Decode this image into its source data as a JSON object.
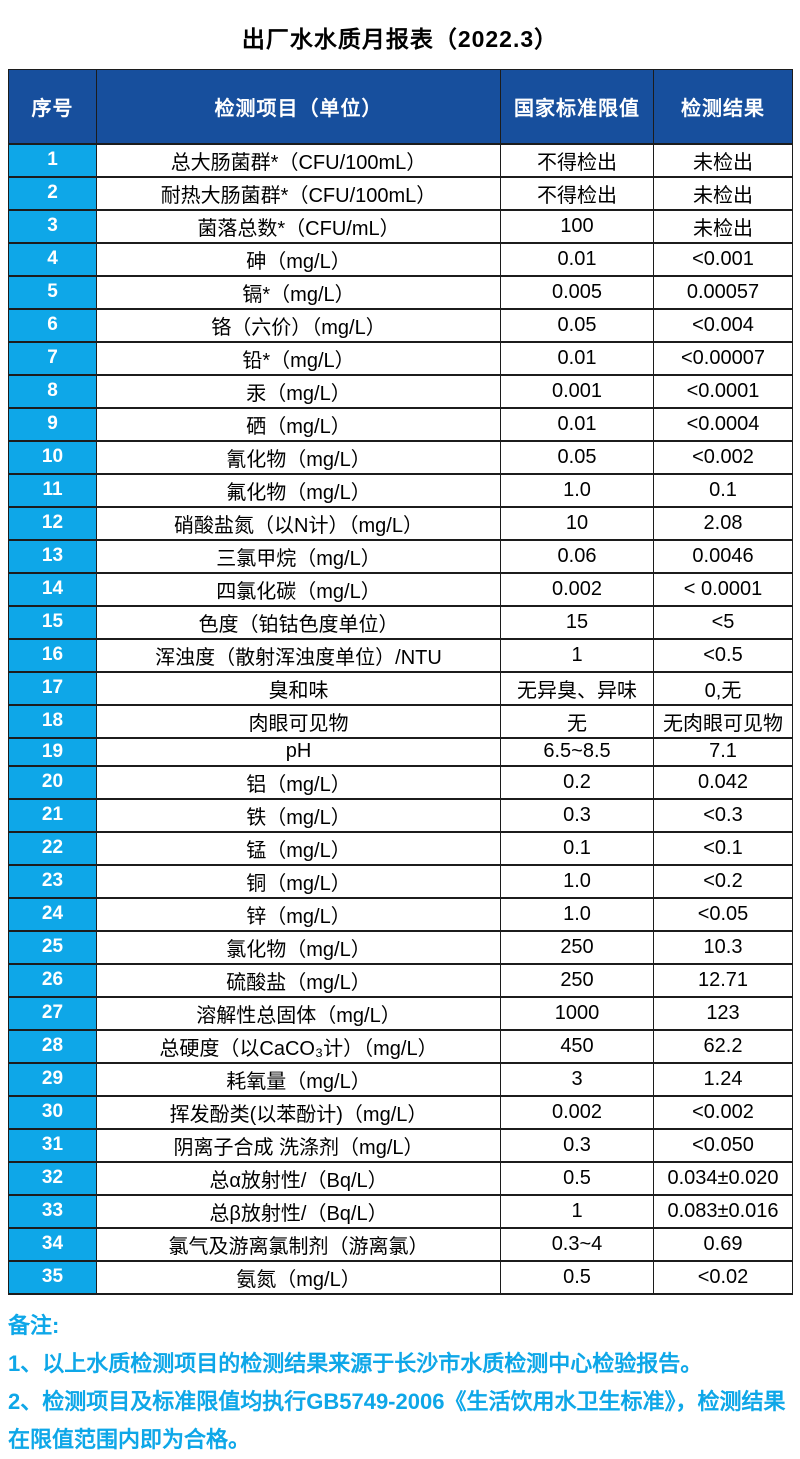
{
  "page": {
    "title": "出厂水水质月报表（2022.3）"
  },
  "table": {
    "headers": [
      "序号",
      "检测项目（单位）",
      "国家标准限值",
      "检测结果"
    ],
    "rows": [
      {
        "no": "1",
        "item": "总大肠菌群*（CFU/100mL）",
        "limit": "不得检出",
        "result": "未检出"
      },
      {
        "no": "2",
        "item": "耐热大肠菌群*（CFU/100mL）",
        "limit": "不得检出",
        "result": "未检出"
      },
      {
        "no": "3",
        "item": "菌落总数*（CFU/mL）",
        "limit": "100",
        "result": "未检出"
      },
      {
        "no": "4",
        "item": "砷（mg/L）",
        "limit": "0.01",
        "result": "<0.001"
      },
      {
        "no": "5",
        "item": "镉*（mg/L）",
        "limit": "0.005",
        "result": "0.00057"
      },
      {
        "no": "6",
        "item": "铬（六价）（mg/L）",
        "limit": "0.05",
        "result": "<0.004"
      },
      {
        "no": "7",
        "item": "铅*（mg/L）",
        "limit": "0.01",
        "result": "<0.00007"
      },
      {
        "no": "8",
        "item": "汞（mg/L）",
        "limit": "0.001",
        "result": "<0.0001"
      },
      {
        "no": "9",
        "item": "硒（mg/L）",
        "limit": "0.01",
        "result": "<0.0004"
      },
      {
        "no": "10",
        "item": "氰化物（mg/L）",
        "limit": "0.05",
        "result": "<0.002"
      },
      {
        "no": "11",
        "item": "氟化物（mg/L）",
        "limit": "1.0",
        "result": "0.1"
      },
      {
        "no": "12",
        "item": "硝酸盐氮（以N计）（mg/L）",
        "limit": "10",
        "result": "2.08"
      },
      {
        "no": "13",
        "item": "三氯甲烷（mg/L）",
        "limit": "0.06",
        "result": "0.0046"
      },
      {
        "no": "14",
        "item": "四氯化碳（mg/L）",
        "limit": "0.002",
        "result": "< 0.0001"
      },
      {
        "no": "15",
        "item": "色度（铂钴色度单位）",
        "limit": "15",
        "result": "<5"
      },
      {
        "no": "16",
        "item": "浑浊度（散射浑浊度单位）/NTU",
        "limit": "1",
        "result": "<0.5"
      },
      {
        "no": "17",
        "item": "臭和味",
        "limit": "无异臭、异味",
        "result": "0,无"
      },
      {
        "no": "18",
        "item": "肉眼可见物",
        "limit": "无",
        "result": "无肉眼可见物"
      },
      {
        "no": "19",
        "item": "pH",
        "limit": "6.5~8.5",
        "result": "7.1"
      },
      {
        "no": "20",
        "item": "铝（mg/L）",
        "limit": "0.2",
        "result": "0.042"
      },
      {
        "no": "21",
        "item": "铁（mg/L）",
        "limit": "0.3",
        "result": "<0.3"
      },
      {
        "no": "22",
        "item": "锰（mg/L）",
        "limit": "0.1",
        "result": "<0.1"
      },
      {
        "no": "23",
        "item": "铜（mg/L）",
        "limit": "1.0",
        "result": "<0.2"
      },
      {
        "no": "24",
        "item": "锌（mg/L）",
        "limit": "1.0",
        "result": "<0.05"
      },
      {
        "no": "25",
        "item": "氯化物（mg/L）",
        "limit": "250",
        "result": "10.3"
      },
      {
        "no": "26",
        "item": "硫酸盐（mg/L）",
        "limit": "250",
        "result": "12.71"
      },
      {
        "no": "27",
        "item": "溶解性总固体（mg/L）",
        "limit": "1000",
        "result": "123"
      },
      {
        "no": "28",
        "item": "总硬度（以CaCO₃计）（mg/L）",
        "limit": "450",
        "result": "62.2"
      },
      {
        "no": "29",
        "item": "耗氧量（mg/L）",
        "limit": "3",
        "result": "1.24"
      },
      {
        "no": "30",
        "item": "挥发酚类(以苯酚计)（mg/L）",
        "limit": "0.002",
        "result": "<0.002"
      },
      {
        "no": "31",
        "item": "阴离子合成 洗涤剂（mg/L）",
        "limit": "0.3",
        "result": "<0.050"
      },
      {
        "no": "32",
        "item": "总α放射性/（Bq/L）",
        "limit": "0.5",
        "result": "0.034±0.020"
      },
      {
        "no": "33",
        "item": "总β放射性/（Bq/L）",
        "limit": "1",
        "result": "0.083±0.016"
      },
      {
        "no": "34",
        "item": "氯气及游离氯制剂（游离氯）",
        "limit": "0.3~4",
        "result": "0.69"
      },
      {
        "no": "35",
        "item": "氨氮（mg/L）",
        "limit": "0.5",
        "result": "<0.02"
      }
    ]
  },
  "notes": {
    "label": "备注:",
    "lines": [
      "1、以上水质检测项目的检测结果来源于长沙市水质检测中心检验报告。",
      "2、检测项目及标准限值均执行GB5749-2006《生活饮用水卫生标准》，检测结果在限值范围内即为合格。"
    ]
  },
  "colors": {
    "header_bg": "#174f9d",
    "index_bg": "#0ea7e8",
    "note_text": "#0ea7e8",
    "border": "#1c1c1c"
  }
}
